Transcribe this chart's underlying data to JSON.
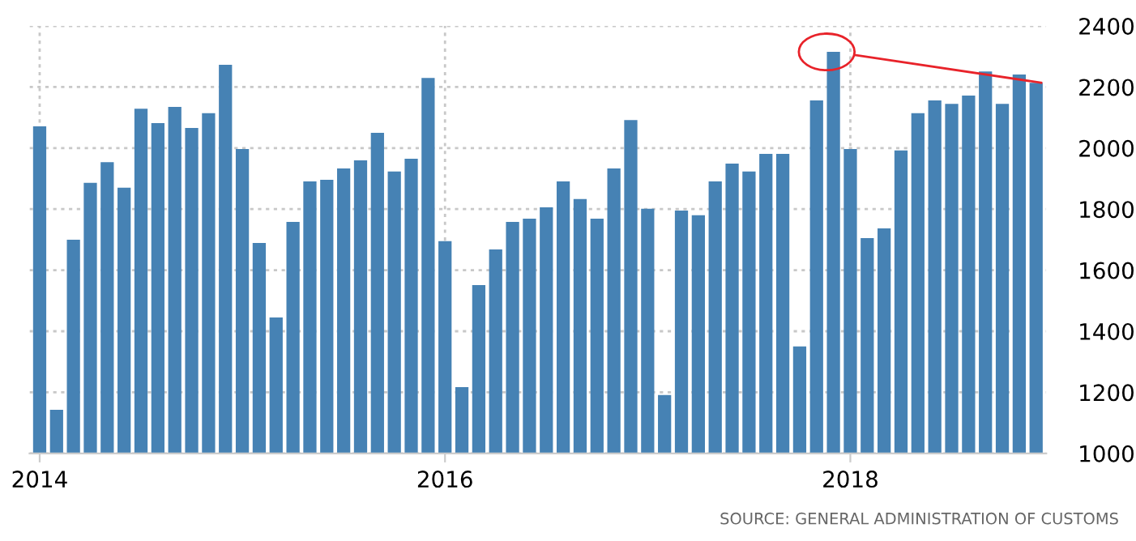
{
  "chart_data": {
    "type": "bar",
    "categories": [
      "2014",
      null,
      null,
      null,
      null,
      null,
      null,
      null,
      null,
      null,
      null,
      null,
      null,
      null,
      null,
      null,
      null,
      null,
      null,
      null,
      null,
      null,
      null,
      null,
      "2016",
      null,
      null,
      null,
      null,
      null,
      null,
      null,
      null,
      null,
      null,
      null,
      null,
      null,
      null,
      null,
      null,
      null,
      null,
      null,
      null,
      null,
      null,
      null,
      "2018",
      null,
      null,
      null,
      null,
      null,
      null,
      null,
      null,
      null,
      null,
      null
    ],
    "values": [
      2071,
      1143,
      1700,
      1886,
      1954,
      1870,
      2129,
      2082,
      2135,
      2066,
      2114,
      2273,
      1997,
      1689,
      1445,
      1758,
      1891,
      1896,
      1933,
      1960,
      2050,
      1923,
      1965,
      2230,
      1695,
      1217,
      1551,
      1668,
      1758,
      1769,
      1806,
      1891,
      1833,
      1769,
      1933,
      2092,
      1801,
      1191,
      1795,
      1780,
      1891,
      1949,
      1923,
      1981,
      1981,
      1350,
      2156,
      2315,
      1997,
      1705,
      1737,
      1992,
      2114,
      2156,
      2145,
      2172,
      2251,
      2145,
      2241,
      2214
    ],
    "color": "#4682b4",
    "ylim": [
      1000,
      2400
    ],
    "yticks": [
      1000,
      1200,
      1400,
      1600,
      1800,
      2000,
      2200,
      2400
    ],
    "grid": true,
    "annotations": [
      "SOURCE: GENERAL ADMINISTRATION OF CUSTOMS"
    ]
  }
}
